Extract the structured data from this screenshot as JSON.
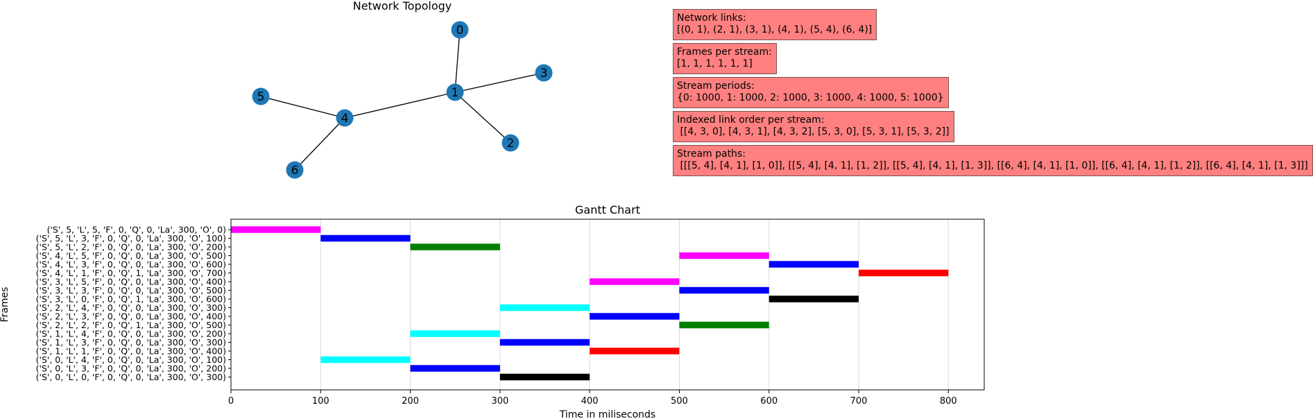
{
  "topology": {
    "title": "Network  Topology",
    "nodes": [
      {
        "id": "0",
        "label": "0"
      },
      {
        "id": "1",
        "label": "1"
      },
      {
        "id": "2",
        "label": "2"
      },
      {
        "id": "3",
        "label": "3"
      },
      {
        "id": "4",
        "label": "4"
      },
      {
        "id": "5",
        "label": "5"
      },
      {
        "id": "6",
        "label": "6"
      }
    ],
    "edges": [
      [
        "0",
        "1"
      ],
      [
        "2",
        "1"
      ],
      [
        "3",
        "1"
      ],
      [
        "4",
        "1"
      ],
      [
        "5",
        "4"
      ],
      [
        "6",
        "4"
      ]
    ],
    "node_color": "#1f77b4"
  },
  "info_boxes": [
    {
      "label": "Network links:",
      "value": "[(0, 1), (2, 1), (3, 1), (4, 1), (5, 4), (6, 4)]"
    },
    {
      "label": "Frames per stream:",
      "value": "[1, 1, 1, 1, 1, 1]"
    },
    {
      "label": "Stream periods:",
      "value": "{0: 1000, 1: 1000, 2: 1000, 3: 1000, 4: 1000, 5: 1000}"
    },
    {
      "label": "Indexed link order per stream:",
      "value": " [[4, 3, 0], [4, 3, 1], [4, 3, 2], [5, 3, 0], [5, 3, 1], [5, 3, 2]]"
    },
    {
      "label": "Stream paths:",
      "value": " [[[5, 4], [4, 1], [1, 0]], [[5, 4], [4, 1], [1, 2]], [[5, 4], [4, 1], [1, 3]], [[6, 4], [4, 1], [1, 0]], [[6, 4], [4, 1], [1, 2]], [[6, 4], [4, 1], [1, 3]]]"
    }
  ],
  "chart_data": {
    "type": "bar",
    "orientation": "horizontal",
    "title": "Gantt Chart",
    "xlabel": "Time in miliseconds",
    "ylabel": "Frames",
    "xlim": [
      0,
      840
    ],
    "xticks": [
      0,
      100,
      200,
      300,
      400,
      500,
      600,
      700,
      800
    ],
    "grid": "x",
    "rows": [
      {
        "label": "('S', 5, 'L', 5, 'F', 0, 'Q', 0, 'La', 300, 'O', 0)",
        "start": 0,
        "end": 100,
        "color": "#ff00ff"
      },
      {
        "label": "('S', 5, 'L', 3, 'F', 0, 'Q', 0, 'La', 300, 'O', 100)",
        "start": 100,
        "end": 200,
        "color": "#0000ff"
      },
      {
        "label": "('S', 5, 'L', 2, 'F', 0, 'Q', 0, 'La', 300, 'O', 200)",
        "start": 200,
        "end": 300,
        "color": "#008000"
      },
      {
        "label": "('S', 4, 'L', 5, 'F', 0, 'Q', 0, 'La', 300, 'O', 500)",
        "start": 500,
        "end": 600,
        "color": "#ff00ff"
      },
      {
        "label": "('S', 4, 'L', 3, 'F', 0, 'Q', 0, 'La', 300, 'O', 600)",
        "start": 600,
        "end": 700,
        "color": "#0000ff"
      },
      {
        "label": "('S', 4, 'L', 1, 'F', 0, 'Q', 1, 'La', 300, 'O', 700)",
        "start": 700,
        "end": 800,
        "color": "#ff0000"
      },
      {
        "label": "('S', 3, 'L', 5, 'F', 0, 'Q', 0, 'La', 300, 'O', 400)",
        "start": 400,
        "end": 500,
        "color": "#ff00ff"
      },
      {
        "label": "('S', 3, 'L', 3, 'F', 0, 'Q', 0, 'La', 300, 'O', 500)",
        "start": 500,
        "end": 600,
        "color": "#0000ff"
      },
      {
        "label": "('S', 3, 'L', 0, 'F', 0, 'Q', 1, 'La', 300, 'O', 600)",
        "start": 600,
        "end": 700,
        "color": "#000000"
      },
      {
        "label": "('S', 2, 'L', 4, 'F', 0, 'Q', 0, 'La', 300, 'O', 300)",
        "start": 300,
        "end": 400,
        "color": "#00ffff"
      },
      {
        "label": "('S', 2, 'L', 3, 'F', 0, 'Q', 0, 'La', 300, 'O', 400)",
        "start": 400,
        "end": 500,
        "color": "#0000ff"
      },
      {
        "label": "('S', 2, 'L', 2, 'F', 0, 'Q', 1, 'La', 300, 'O', 500)",
        "start": 500,
        "end": 600,
        "color": "#008000"
      },
      {
        "label": "('S', 1, 'L', 4, 'F', 0, 'Q', 0, 'La', 300, 'O', 200)",
        "start": 200,
        "end": 300,
        "color": "#00ffff"
      },
      {
        "label": "('S', 1, 'L', 3, 'F', 0, 'Q', 0, 'La', 300, 'O', 300)",
        "start": 300,
        "end": 400,
        "color": "#0000ff"
      },
      {
        "label": "('S', 1, 'L', 1, 'F', 0, 'Q', 0, 'La', 300, 'O', 400)",
        "start": 400,
        "end": 500,
        "color": "#ff0000"
      },
      {
        "label": "('S', 0, 'L', 4, 'F', 0, 'Q', 0, 'La', 300, 'O', 100)",
        "start": 100,
        "end": 200,
        "color": "#00ffff"
      },
      {
        "label": "('S', 0, 'L', 3, 'F', 0, 'Q', 0, 'La', 300, 'O', 200)",
        "start": 200,
        "end": 300,
        "color": "#0000ff"
      },
      {
        "label": "('S', 0, 'L', 0, 'F', 0, 'Q', 0, 'La', 300, 'O', 300)",
        "start": 300,
        "end": 400,
        "color": "#000000"
      }
    ]
  }
}
